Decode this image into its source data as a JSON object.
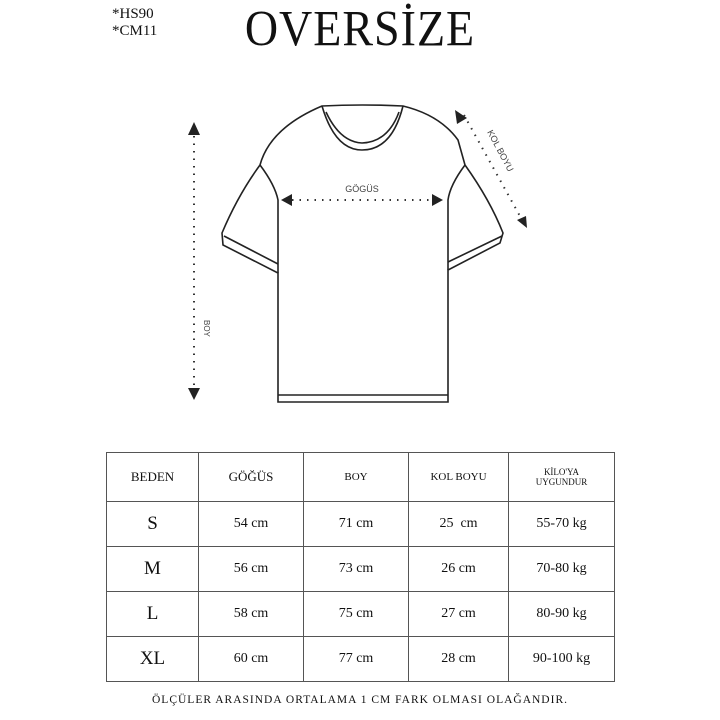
{
  "codes": [
    "*HS90",
    "*CM11"
  ],
  "title": "OVERSİZE",
  "diagram": {
    "chest_label": "GÖGÜS",
    "length_label": "BOY",
    "sleeve_label": "KOL BOYU"
  },
  "table": {
    "headers": [
      "BEDEN",
      "GÖĞÜS",
      "BOY",
      "KOL BOYU",
      "KİLO'YA",
      "UYGUNDUR"
    ],
    "rows": [
      [
        "S",
        "54 cm",
        "71 cm",
        "25  cm",
        "55-70 kg"
      ],
      [
        "M",
        "56 cm",
        "73 cm",
        "26 cm",
        "70-80 kg"
      ],
      [
        "L",
        "58 cm",
        "75 cm",
        "27 cm",
        "80-90 kg"
      ],
      [
        "XL",
        "60 cm",
        "77 cm",
        "28 cm",
        "90-100 kg"
      ]
    ]
  },
  "note": "ÖLÇÜLER ARASINDA ORTALAMA 1 CM FARK OLMASI OLAĞANDIR."
}
